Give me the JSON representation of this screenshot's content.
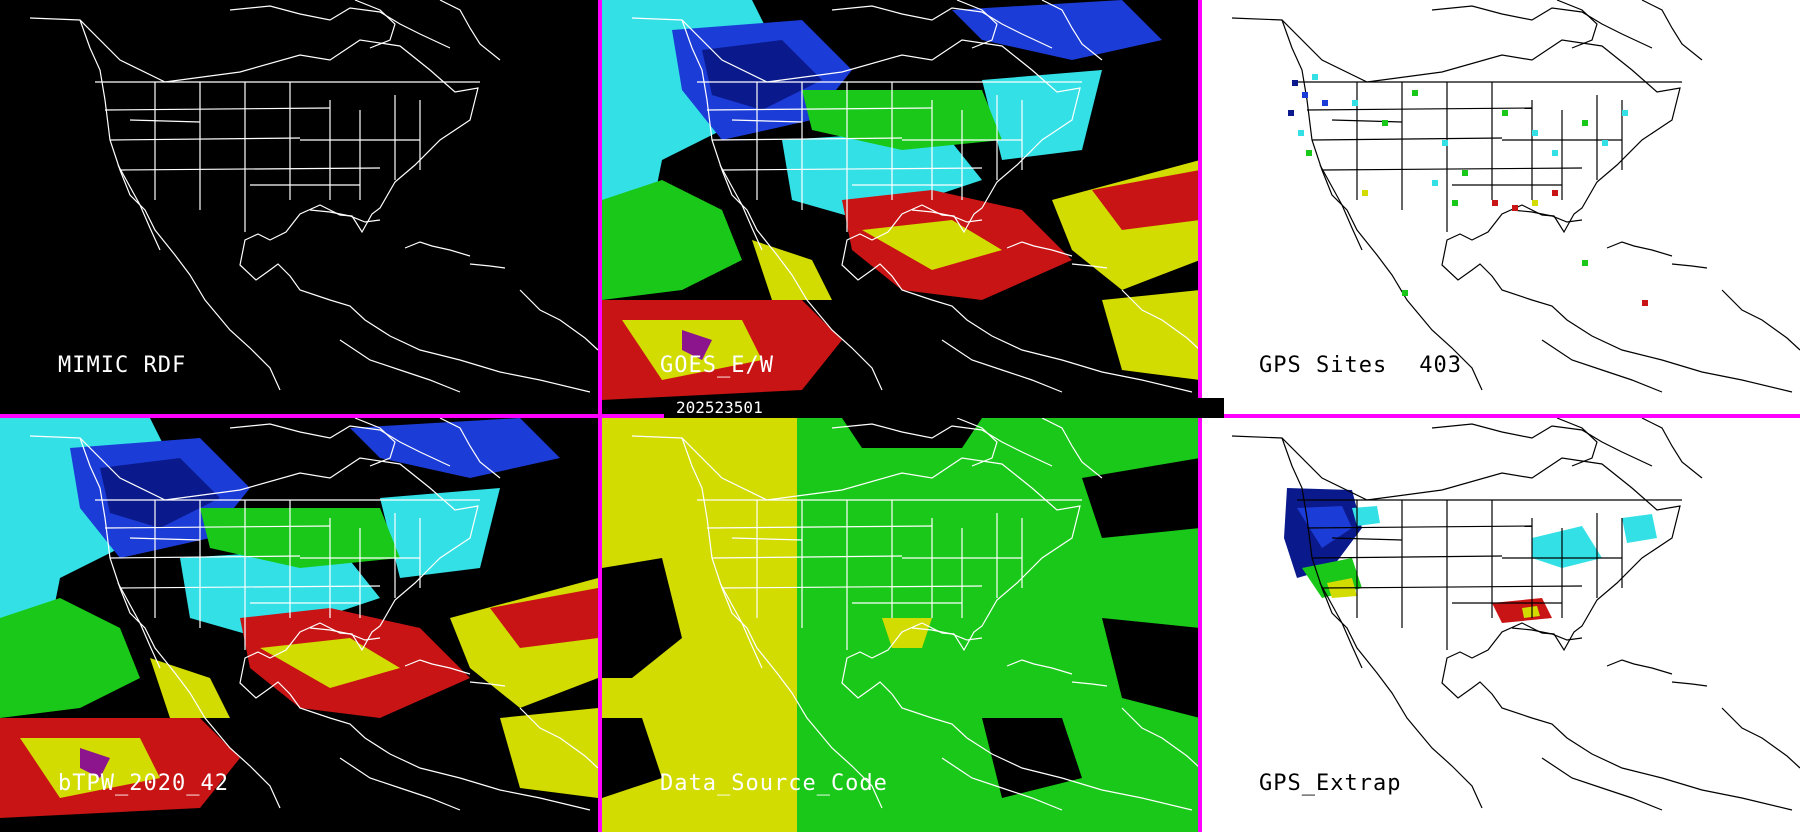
{
  "date_code": "202523501",
  "panels": {
    "mimic_rdf": {
      "label": "MIMIC RDF"
    },
    "goes": {
      "label": "GOES_E/W"
    },
    "gps_sites": {
      "label": "GPS Sites",
      "count": "403"
    },
    "btpw": {
      "label": "bTPW_2020_42"
    },
    "data_source": {
      "label": "Data_Source_Code"
    },
    "gps_extrap": {
      "label": "GPS_Extrap"
    }
  },
  "colors": {
    "separator": "#ff00ff",
    "tpw_scale": [
      "#0a1a8c",
      "#1c3cd8",
      "#33e0e6",
      "#19c819",
      "#d2dc00",
      "#c81414",
      "#8c148c"
    ]
  }
}
